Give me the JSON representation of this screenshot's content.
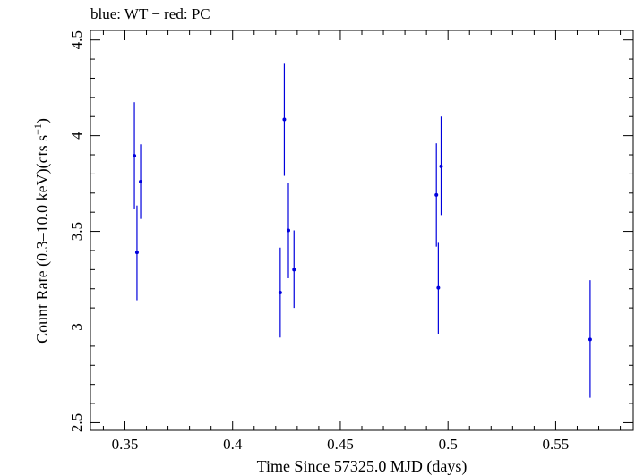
{
  "chart_data": {
    "type": "scatter",
    "title": "blue: WT − red: PC",
    "xlabel": "Time Since 57325.0 MJD (days)",
    "ylabel_main": "Count Rate (0.3–10.0 keV)(cts s",
    "ylabel_sup": "−1",
    "ylabel_close": ")",
    "xlim": [
      0.334,
      0.586
    ],
    "ylim": [
      2.46,
      4.55
    ],
    "xticks": [
      {
        "value": 0.35,
        "label": "0.35"
      },
      {
        "value": 0.4,
        "label": "0.4"
      },
      {
        "value": 0.45,
        "label": "0.45"
      },
      {
        "value": 0.5,
        "label": "0.5"
      },
      {
        "value": 0.55,
        "label": "0.55"
      }
    ],
    "yticks": [
      {
        "value": 2.5,
        "label": "2.5"
      },
      {
        "value": 3,
        "label": "3"
      },
      {
        "value": 3.5,
        "label": "3.5"
      },
      {
        "value": 4,
        "label": "4"
      },
      {
        "value": 4.5,
        "label": "4.5"
      }
    ],
    "x_minor_step": 0.01,
    "y_minor_step": 0.1,
    "series": [
      {
        "name": "WT",
        "color": "#0000dd",
        "points": [
          {
            "x": 0.3544,
            "y": 3.895,
            "ylo": 3.615,
            "yhi": 4.175
          },
          {
            "x": 0.3556,
            "y": 3.39,
            "ylo": 3.14,
            "yhi": 3.635
          },
          {
            "x": 0.3573,
            "y": 3.76,
            "ylo": 3.565,
            "yhi": 3.955
          },
          {
            "x": 0.4221,
            "y": 3.18,
            "ylo": 2.945,
            "yhi": 3.415
          },
          {
            "x": 0.424,
            "y": 4.085,
            "ylo": 3.79,
            "yhi": 4.38
          },
          {
            "x": 0.4259,
            "y": 3.505,
            "ylo": 3.255,
            "yhi": 3.755
          },
          {
            "x": 0.4285,
            "y": 3.3,
            "ylo": 3.1,
            "yhi": 3.505
          },
          {
            "x": 0.4946,
            "y": 3.69,
            "ylo": 3.42,
            "yhi": 3.96
          },
          {
            "x": 0.4955,
            "y": 3.205,
            "ylo": 2.965,
            "yhi": 3.44
          },
          {
            "x": 0.4968,
            "y": 3.84,
            "ylo": 3.585,
            "yhi": 4.1
          },
          {
            "x": 0.566,
            "y": 2.935,
            "ylo": 2.63,
            "yhi": 3.245
          }
        ]
      }
    ]
  }
}
